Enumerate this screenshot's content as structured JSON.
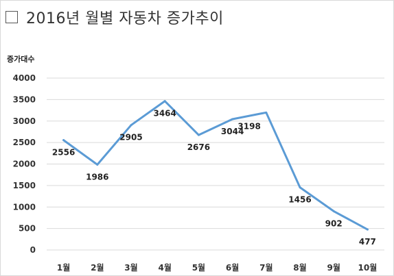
{
  "title": "2016년 월별 자동차 증가추이",
  "chart_data": {
    "type": "line",
    "ylabel": "증가대수",
    "categories": [
      "1월",
      "2월",
      "3월",
      "4월",
      "5월",
      "6월",
      "7월",
      "8월",
      "9월",
      "10월"
    ],
    "values": [
      2556,
      1986,
      2905,
      3464,
      2676,
      3044,
      3198,
      1456,
      902,
      477
    ],
    "ylim": [
      0,
      4000
    ],
    "yticks": [
      0,
      500,
      1000,
      1500,
      2000,
      2500,
      3000,
      3500,
      4000
    ],
    "grid": true,
    "line_color": "#5b9bd5",
    "data_label_position": [
      "below",
      "below",
      "below",
      "below",
      "below",
      "below",
      "left",
      "below",
      "below",
      "below"
    ]
  }
}
